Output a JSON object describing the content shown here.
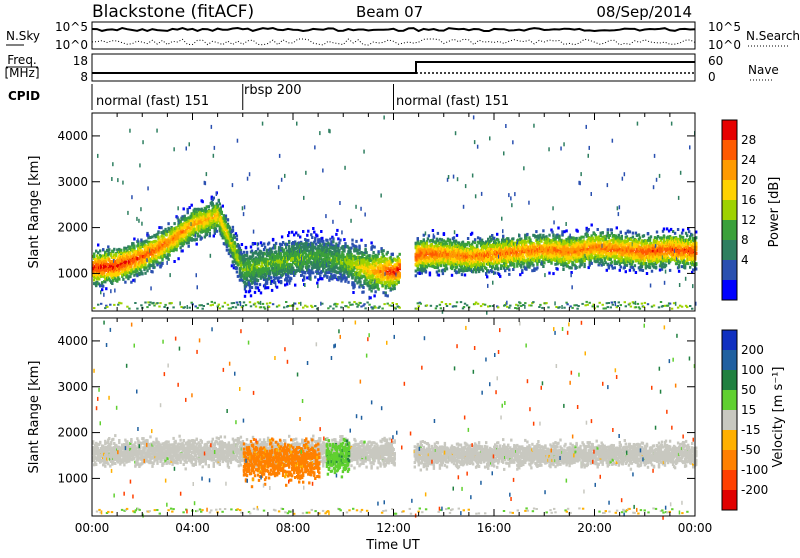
{
  "header": {
    "station": "Blackstone (fitACF)",
    "beam": "Beam 07",
    "date": "08/Sep/2014"
  },
  "noise_panel": {
    "left_label": "N.Sky",
    "right_label": "N.Search",
    "left_ticks": [
      "10^5",
      "10^0"
    ],
    "right_ticks": [
      "10^5",
      "10^0"
    ]
  },
  "freq_panel": {
    "left_label_1": "Freq.",
    "left_label_2": "[MHz]",
    "right_label": "Nave",
    "left_ticks": [
      "18",
      "8"
    ],
    "right_ticks": [
      "60",
      "0"
    ]
  },
  "cpid": {
    "label": "CPID",
    "segments": [
      {
        "name": "normal (fast) 151",
        "start_hour": 0,
        "end_hour": 6
      },
      {
        "name": "rbsp 200",
        "start_hour": 6,
        "end_hour": 12
      },
      {
        "name": "normal (fast) 151",
        "start_hour": 12,
        "end_hour": 24
      }
    ]
  },
  "axes": {
    "ylabel": "Slant Range [km]",
    "xlabel": "Time UT",
    "x_ticks": [
      "00:00",
      "04:00",
      "08:00",
      "12:00",
      "16:00",
      "20:00",
      "00:00"
    ],
    "y_ticks": [
      "1000",
      "2000",
      "3000",
      "4000"
    ]
  },
  "power_colorbar": {
    "label": "Power [dB]",
    "ticks": [
      "28",
      "24",
      "20",
      "16",
      "12",
      "8",
      "4"
    ],
    "colors": [
      "#e60000",
      "#ff5a00",
      "#ff9a00",
      "#ffd200",
      "#9ed200",
      "#3aa03a",
      "#2f7f60",
      "#2a50b0",
      "#0000ff"
    ]
  },
  "velocity_colorbar": {
    "label": "Velocity [m s⁻¹]",
    "ticks": [
      "200",
      "100",
      "50",
      "15",
      "-15",
      "-50",
      "-100",
      "-200"
    ],
    "colors": [
      "#1030c0",
      "#2060a0",
      "#208040",
      "#60d030",
      "#c8c8c0",
      "#ffb000",
      "#ff8000",
      "#ff4000",
      "#e00000"
    ]
  },
  "chart_data": {
    "type": "heatmap",
    "title": "Blackstone (fitACF) Beam 07 08/Sep/2014",
    "xlabel": "Time UT",
    "ylabel": "Slant Range [km]",
    "xlim": [
      0,
      24
    ],
    "ylim": [
      180,
      4500
    ],
    "panels": [
      {
        "name": "Power [dB]",
        "range": [
          0,
          30
        ],
        "echo_band": {
          "hours": [
            0,
            1,
            2,
            3,
            4,
            5,
            6,
            7,
            8,
            9,
            10,
            11,
            12,
            13,
            14,
            15,
            16,
            17,
            18,
            19,
            20,
            21,
            22,
            23,
            24
          ],
          "center_km": [
            1150,
            1200,
            1400,
            1700,
            2100,
            2300,
            1100,
            1250,
            1350,
            1400,
            1300,
            1100,
            1050,
            1450,
            1450,
            1400,
            1450,
            1500,
            1550,
            1500,
            1600,
            1550,
            1500,
            1550,
            1500
          ],
          "peak_db": [
            28,
            28,
            26,
            24,
            22,
            20,
            14,
            14,
            14,
            12,
            14,
            20,
            28,
            26,
            24,
            24,
            24,
            24,
            24,
            24,
            24,
            24,
            26,
            26,
            26
          ]
        }
      },
      {
        "name": "Velocity [m s-1]",
        "range": [
          -200,
          200
        ],
        "regions": [
          {
            "hours": [
              0,
              12
            ],
            "range_km": [
              1200,
              2000
            ],
            "velocity": 0
          },
          {
            "hours": [
              6,
              9
            ],
            "range_km": [
              800,
              2000
            ],
            "velocity": -60
          },
          {
            "hours": [
              9.3,
              10.2
            ],
            "range_km": [
              1000,
              2000
            ],
            "velocity": 40
          },
          {
            "hours": [
              12.8,
              24
            ],
            "range_km": [
              1200,
              1900
            ],
            "velocity": 0
          }
        ]
      }
    ]
  }
}
